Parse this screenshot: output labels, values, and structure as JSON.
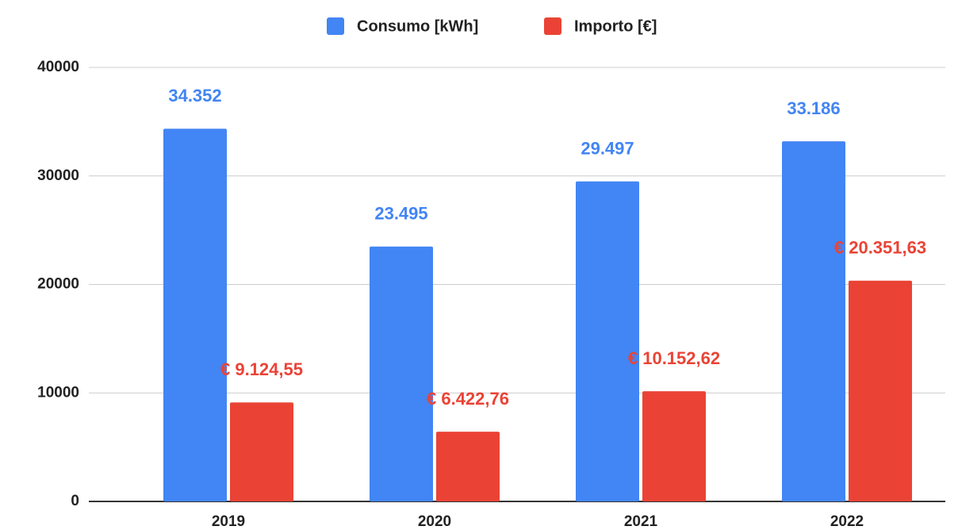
{
  "chart_data": {
    "type": "bar",
    "categories": [
      "2019",
      "2020",
      "2021",
      "2022"
    ],
    "series": [
      {
        "name": "Consumo [kWh]",
        "color": "#4285f4",
        "values": [
          34352,
          23495,
          29497,
          33186
        ],
        "value_labels": [
          "34.352",
          "23.495",
          "29.497",
          "33.186"
        ]
      },
      {
        "name": "Importo [€]",
        "color": "#ea4335",
        "values": [
          9124.55,
          6422.76,
          10152.62,
          20351.63
        ],
        "value_labels": [
          "€ 9.124,55",
          "€ 6.422,76",
          "€ 10.152,62",
          "€ 20.351,63"
        ]
      }
    ],
    "ylim": [
      0,
      40000
    ],
    "yticks": [
      0,
      10000,
      20000,
      30000,
      40000
    ],
    "grid": true,
    "legend": "top"
  }
}
